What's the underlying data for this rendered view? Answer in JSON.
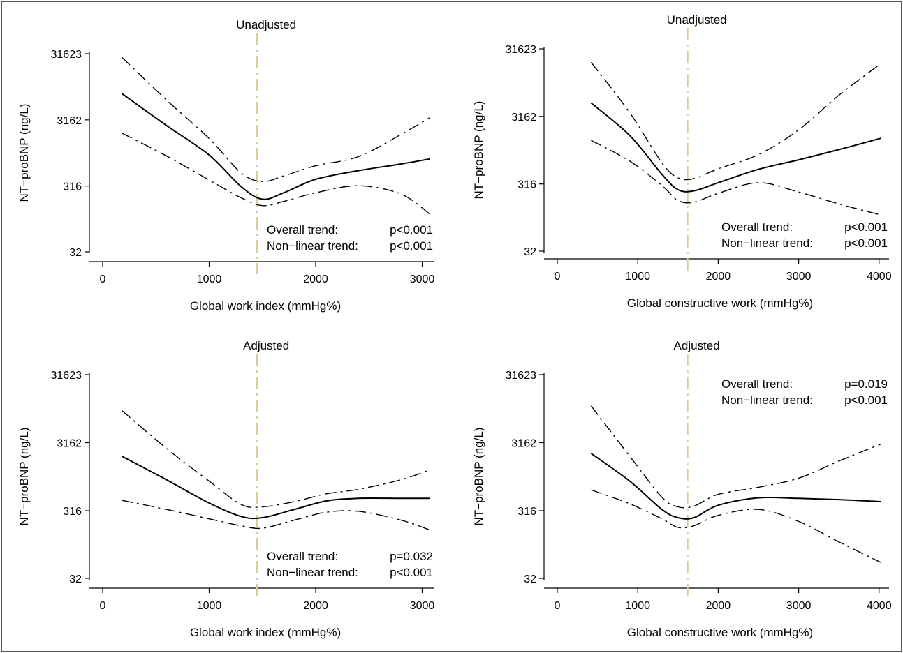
{
  "chart_data": [
    {
      "type": "line",
      "title": "Unadjusted",
      "xlabel": "Global work index (mmHg%)",
      "ylabel": "NT−proBNP (ng/L)",
      "y_scale": "log",
      "xlim": [
        0,
        3100
      ],
      "ylim": [
        32,
        31623
      ],
      "x_ticks": [
        0,
        1000,
        2000,
        3000
      ],
      "x_tick_labels": [
        "0",
        "1000",
        "2000",
        "3000"
      ],
      "y_ticks": [
        32,
        316,
        3162,
        31623
      ],
      "y_tick_labels": [
        "32",
        "316",
        "3162",
        "31623"
      ],
      "reference_line_x": 1450,
      "annotation": {
        "position": "bottom-right",
        "lines": [
          {
            "label": "Overall trend:",
            "value": "p<0.001"
          },
          {
            "label": "Non−linear trend:",
            "value": "p<0.001"
          }
        ]
      },
      "series": [
        {
          "style": "solid",
          "x": [
            180,
            600,
            1000,
            1300,
            1500,
            1700,
            2000,
            2400,
            2800,
            3070
          ],
          "y": [
            7900,
            2600,
            930,
            310,
            200,
            250,
            400,
            540,
            680,
            810
          ]
        },
        {
          "style": "dash-dot",
          "x": [
            180,
            600,
            1000,
            1300,
            1500,
            1700,
            2000,
            2400,
            2800,
            3070
          ],
          "y": [
            28000,
            6300,
            1650,
            500,
            370,
            450,
            640,
            880,
            1900,
            3400
          ]
        },
        {
          "style": "dash-dot",
          "x": [
            180,
            600,
            1000,
            1300,
            1500,
            1700,
            2000,
            2400,
            2800,
            3070
          ],
          "y": [
            2000,
            900,
            390,
            210,
            160,
            185,
            250,
            320,
            240,
            120
          ]
        }
      ]
    },
    {
      "type": "line",
      "title": "Unadjusted",
      "xlabel": "Global constructive work (mmHg%)",
      "ylabel": "NT−proBNP (ng/L)",
      "y_scale": "log",
      "xlim": [
        0,
        4100
      ],
      "ylim": [
        32,
        31623
      ],
      "x_ticks": [
        0,
        1000,
        2000,
        3000,
        4000
      ],
      "x_tick_labels": [
        "0",
        "1000",
        "2000",
        "3000",
        "4000"
      ],
      "y_ticks": [
        32,
        316,
        3162,
        31623
      ],
      "y_tick_labels": [
        "32",
        "316",
        "3162",
        "31623"
      ],
      "reference_line_x": 1620,
      "annotation": {
        "position": "bottom-right",
        "lines": [
          {
            "label": "Overall trend:",
            "value": "p<0.001"
          },
          {
            "label": "Non−linear trend:",
            "value": "p<0.001"
          }
        ]
      },
      "series": [
        {
          "style": "solid",
          "x": [
            420,
            900,
            1300,
            1500,
            1700,
            2000,
            2500,
            3000,
            3500,
            4020
          ],
          "y": [
            5000,
            1650,
            440,
            260,
            250,
            330,
            520,
            720,
            1020,
            1500
          ]
        },
        {
          "style": "dash-dot",
          "x": [
            420,
            900,
            1300,
            1500,
            1700,
            2000,
            2500,
            3000,
            3500,
            4020
          ],
          "y": [
            20000,
            3600,
            650,
            390,
            380,
            530,
            860,
            2000,
            6500,
            19000
          ]
        },
        {
          "style": "dash-dot",
          "x": [
            420,
            900,
            1300,
            1500,
            1700,
            2000,
            2500,
            3000,
            3500,
            4020
          ],
          "y": [
            1400,
            690,
            300,
            180,
            170,
            230,
            330,
            240,
            160,
            110
          ]
        }
      ]
    },
    {
      "type": "line",
      "title": "Adjusted",
      "xlabel": "Global work index (mmHg%)",
      "ylabel": "NT−proBNP (ng/L)",
      "y_scale": "log",
      "xlim": [
        0,
        3100
      ],
      "ylim": [
        32,
        31623
      ],
      "x_ticks": [
        0,
        1000,
        2000,
        3000
      ],
      "x_tick_labels": [
        "0",
        "1000",
        "2000",
        "3000"
      ],
      "y_ticks": [
        32,
        316,
        3162,
        31623
      ],
      "y_tick_labels": [
        "32",
        "316",
        "3162",
        "31623"
      ],
      "reference_line_x": 1450,
      "annotation": {
        "position": "bottom-right",
        "lines": [
          {
            "label": "Overall trend:",
            "value": "p=0.032"
          },
          {
            "label": "Non−linear trend:",
            "value": "p<0.001"
          }
        ]
      },
      "series": [
        {
          "style": "solid",
          "x": [
            180,
            600,
            1000,
            1300,
            1500,
            1800,
            2100,
            2400,
            2800,
            3070
          ],
          "y": [
            2000,
            900,
            410,
            260,
            250,
            330,
            440,
            480,
            480,
            480
          ]
        },
        {
          "style": "dash-dot",
          "x": [
            180,
            600,
            1000,
            1300,
            1500,
            1800,
            2100,
            2400,
            2800,
            3070
          ],
          "y": [
            9400,
            2600,
            860,
            390,
            360,
            430,
            560,
            650,
            900,
            1250
          ]
        },
        {
          "style": "dash-dot",
          "x": [
            180,
            600,
            1000,
            1300,
            1500,
            1800,
            2100,
            2400,
            2800,
            3070
          ],
          "y": [
            450,
            330,
            240,
            190,
            175,
            230,
            300,
            310,
            230,
            165
          ]
        }
      ]
    },
    {
      "type": "line",
      "title": "Adjusted",
      "xlabel": "Global constructive work (mmHg%)",
      "ylabel": "NT−proBNP (ng/L)",
      "y_scale": "log",
      "xlim": [
        0,
        4100
      ],
      "ylim": [
        32,
        31623
      ],
      "x_ticks": [
        0,
        1000,
        2000,
        3000,
        4000
      ],
      "x_tick_labels": [
        "0",
        "1000",
        "2000",
        "3000",
        "4000"
      ],
      "y_ticks": [
        32,
        316,
        3162,
        31623
      ],
      "y_tick_labels": [
        "32",
        "316",
        "3162",
        "31623"
      ],
      "reference_line_x": 1620,
      "annotation": {
        "position": "top-right",
        "lines": [
          {
            "label": "Overall trend:",
            "value": "p=0.019"
          },
          {
            "label": "Non−linear trend:",
            "value": "p<0.001"
          }
        ]
      },
      "series": [
        {
          "style": "solid",
          "x": [
            420,
            900,
            1300,
            1500,
            1700,
            2000,
            2500,
            3000,
            3500,
            4020
          ],
          "y": [
            2200,
            860,
            330,
            250,
            250,
            380,
            490,
            480,
            460,
            430
          ]
        },
        {
          "style": "dash-dot",
          "x": [
            420,
            900,
            1300,
            1500,
            1700,
            2000,
            2500,
            3000,
            3500,
            4020
          ],
          "y": [
            11000,
            2000,
            500,
            360,
            370,
            550,
            700,
            950,
            1700,
            3000
          ]
        },
        {
          "style": "dash-dot",
          "x": [
            420,
            900,
            1300,
            1500,
            1700,
            2000,
            2500,
            3000,
            3500,
            4020
          ],
          "y": [
            640,
            400,
            240,
            180,
            190,
            270,
            330,
            220,
            110,
            55
          ]
        }
      ]
    }
  ]
}
